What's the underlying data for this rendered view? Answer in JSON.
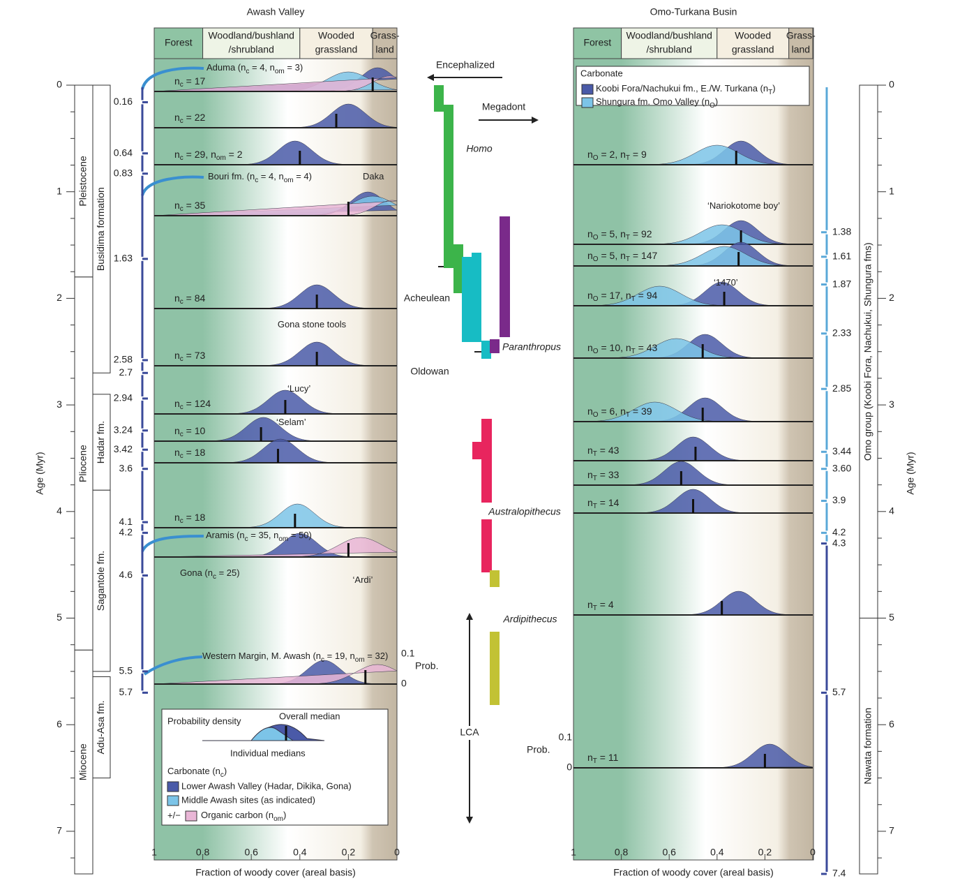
{
  "figure": {
    "titles": {
      "left": "Awash Valley",
      "right": "Omo-Turkana Busin"
    },
    "habitats": {
      "edges": [
        1,
        0.8,
        0.4,
        0.1,
        0
      ],
      "labels": [
        [
          "Forest"
        ],
        [
          "Woodland/bushland",
          "/shrubland"
        ],
        [
          "Wooded",
          "grassland"
        ],
        [
          "Grass-",
          "land"
        ]
      ]
    },
    "age_axis": {
      "label": "Age (Myr)",
      "ticks": [
        0,
        1,
        2,
        3,
        4,
        5,
        6,
        7
      ]
    },
    "x_axis": {
      "label": "Fraction of woody cover (areal basis)",
      "ticks": [
        1,
        0.8,
        0.6,
        0.4,
        0.2,
        0
      ],
      "lim": [
        1,
        0
      ]
    },
    "prob_axis": {
      "label": "Prob.",
      "ticks": [
        0.1,
        0
      ]
    },
    "left": {
      "boundaries": [
        0.16,
        0.64,
        0.83,
        1.63,
        2.58,
        2.7,
        2.94,
        3.24,
        3.42,
        3.6,
        4.1,
        4.2,
        4.6,
        5.5,
        5.7
      ],
      "epochs": [
        {
          "name": "Pleistocene",
          "range": [
            0,
            1.8
          ]
        },
        {
          "name": "Pliocene",
          "range": [
            1.8,
            5.3
          ]
        },
        {
          "name": "Miocene",
          "range": [
            5.3,
            7.4
          ]
        }
      ],
      "formations": [
        {
          "name": "Busidima formation",
          "range": [
            0,
            2.7
          ]
        },
        {
          "name": "Hadar fm.",
          "range": [
            2.9,
            3.8
          ]
        },
        {
          "name": "Sagantole fm.",
          "range": [
            3.8,
            5.5
          ]
        },
        {
          "name": "Adu-Asa fm.",
          "range": [
            5.55,
            6.5
          ]
        }
      ],
      "rows": [
        {
          "label": [
            "n",
            {
              "sub": "c"
            },
            " = 17"
          ],
          "median": 0.1,
          "components": [
            {
              "color": "#4a5aa8",
              "peak": 0.08
            },
            {
              "color": "#7cc4e8",
              "peak": 0.2
            },
            {
              "color": "#e9b6d6",
              "peak": 0.03
            }
          ]
        },
        {
          "label": [
            "n",
            {
              "sub": "c"
            },
            " = 22"
          ],
          "median": 0.25,
          "components": [
            {
              "color": "#4a5aa8",
              "peak": 0.2
            }
          ]
        },
        {
          "label": [
            "n",
            {
              "sub": "c"
            },
            " = 29, n",
            {
              "sub": "om"
            },
            " = 2"
          ],
          "median": 0.4,
          "components": [
            {
              "color": "#4a5aa8",
              "peak": 0.42
            }
          ]
        },
        {
          "label": [
            "n",
            {
              "sub": "c"
            },
            " = 35"
          ],
          "median": 0.2,
          "components": [
            {
              "color": "#4a5aa8",
              "peak": 0.12
            },
            {
              "color": "#7cc4e8",
              "peak": 0.1
            },
            {
              "color": "#e9b6d6",
              "peak": 0.02
            }
          ]
        },
        {
          "label": [
            "n",
            {
              "sub": "c"
            },
            " = 84"
          ],
          "median": 0.33,
          "components": [
            {
              "color": "#4a5aa8",
              "peak": 0.33
            }
          ]
        },
        {
          "label": [
            "n",
            {
              "sub": "c"
            },
            " = 73"
          ],
          "median": 0.33,
          "components": [
            {
              "color": "#4a5aa8",
              "peak": 0.33
            }
          ]
        },
        {
          "label": [
            "n",
            {
              "sub": "c"
            },
            " = 124"
          ],
          "median": 0.46,
          "components": [
            {
              "color": "#4a5aa8",
              "peak": 0.46
            }
          ]
        },
        {
          "label": [
            "n",
            {
              "sub": "c"
            },
            " = 10"
          ],
          "median": 0.56,
          "components": [
            {
              "color": "#4a5aa8",
              "peak": 0.55
            }
          ]
        },
        {
          "label": [
            "n",
            {
              "sub": "c"
            },
            " = 18"
          ],
          "median": 0.49,
          "components": [
            {
              "color": "#4a5aa8",
              "peak": 0.48
            }
          ]
        },
        {
          "label": [
            "n",
            {
              "sub": "c"
            },
            " = 18"
          ],
          "median": 0.42,
          "components": [
            {
              "color": "#7cc4e8",
              "peak": 0.41
            }
          ]
        },
        {
          "label": [],
          "median": 0.2,
          "components": [
            {
              "color": "#4a5aa8",
              "peak": 0.4
            },
            {
              "color": "#e9b6d6",
              "peak": 0.15
            }
          ]
        },
        {
          "label": [],
          "median": 0.13,
          "components": [
            {
              "color": "#4a5aa8",
              "peak": 0.3
            },
            {
              "color": "#e9b6d6",
              "peak": 0.08
            }
          ]
        }
      ],
      "annotations": [
        [
          "Aduma (n",
          {
            "sub": "c"
          },
          " = 4, n",
          {
            "sub": "om"
          },
          " = 3)"
        ],
        [
          "Bouri fm. (n",
          {
            "sub": "c"
          },
          " = 4, n",
          {
            "sub": "om"
          },
          " = 4)"
        ],
        [
          "Daka"
        ],
        [
          "Gona stone tools"
        ],
        [
          "‘Lucy’"
        ],
        [
          "‘Selam’"
        ],
        [
          "Aramis (n",
          {
            "sub": "c"
          },
          " = 35, n",
          {
            "sub": "om"
          },
          " = 50)"
        ],
        [
          "Gona (n",
          {
            "sub": "c"
          },
          " = 25)"
        ],
        [
          "‘Ardi’"
        ],
        [
          "Western Margin, M. Awash (n",
          {
            "sub": "c"
          },
          " = 19, n",
          {
            "sub": "om"
          },
          " = 32)"
        ]
      ],
      "legend": {
        "density": "Probability density",
        "overall": "Overall median",
        "individual": "Individual medians",
        "title": [
          "Carbonate (n",
          {
            "sub": "c"
          },
          ")"
        ],
        "items": [
          {
            "name": "Lower Awash Valley (Hadar, Dikika, Gona)",
            "color": "#4a5aa8"
          },
          {
            "name": "Middle Awash sites (as indicated)",
            "color": "#7cc4e8"
          }
        ],
        "pm": "+/−",
        "organic": [
          "Organic carbon (n",
          {
            "sub": "om"
          },
          ")"
        ],
        "organic_color": "#e9b6d6"
      }
    },
    "right": {
      "boundaries": [
        1.38,
        1.61,
        1.87,
        2.33,
        2.85,
        3.44,
        {
          "value": 3.6,
          "label": "3.60"
        },
        3.9,
        4.2,
        4.3,
        5.7,
        7.4
      ],
      "formations": [
        {
          "name": "Omo group (Koobi Fora, Nachukui, Shungura fms)",
          "range": [
            0,
            5
          ]
        },
        {
          "name": "Nawata formation",
          "range": [
            5,
            7.4
          ]
        }
      ],
      "rows": [
        {
          "label": [
            "n",
            {
              "sub": "O"
            },
            " = 2, n",
            {
              "sub": "T"
            },
            " = 9"
          ],
          "median": 0.32,
          "components": [
            {
              "color": "#4a5aa8",
              "peak": 0.3
            },
            {
              "color": "#7cc4e8",
              "peak": 0.4
            }
          ]
        },
        {
          "label": [
            "n",
            {
              "sub": "O"
            },
            " = 5, n",
            {
              "sub": "T"
            },
            " = 92"
          ],
          "median": 0.3,
          "components": [
            {
              "color": "#4a5aa8",
              "peak": 0.3
            },
            {
              "color": "#7cc4e8",
              "peak": 0.38
            }
          ]
        },
        {
          "label": [
            "n",
            {
              "sub": "O"
            },
            " = 5, n",
            {
              "sub": "T"
            },
            " = 147"
          ],
          "median": 0.31,
          "components": [
            {
              "color": "#4a5aa8",
              "peak": 0.3
            },
            {
              "color": "#7cc4e8",
              "peak": 0.37
            }
          ]
        },
        {
          "label": [
            "n",
            {
              "sub": "O"
            },
            " = 17, n",
            {
              "sub": "T"
            },
            " = 94"
          ],
          "median": 0.37,
          "components": [
            {
              "color": "#4a5aa8",
              "peak": 0.38
            },
            {
              "color": "#7cc4e8",
              "peak": 0.64
            }
          ]
        },
        {
          "label": [
            "n",
            {
              "sub": "O"
            },
            " = 10, n",
            {
              "sub": "T"
            },
            " = 43"
          ],
          "median": 0.46,
          "components": [
            {
              "color": "#4a5aa8",
              "peak": 0.45
            },
            {
              "color": "#7cc4e8",
              "peak": 0.57
            }
          ]
        },
        {
          "label": [
            "n",
            {
              "sub": "O"
            },
            " = 6, n",
            {
              "sub": "T"
            },
            " = 39"
          ],
          "median": 0.46,
          "components": [
            {
              "color": "#4a5aa8",
              "peak": 0.45
            },
            {
              "color": "#7cc4e8",
              "peak": 0.66
            }
          ]
        },
        {
          "label": [
            "n",
            {
              "sub": "T"
            },
            " = 43"
          ],
          "median": 0.49,
          "components": [
            {
              "color": "#4a5aa8",
              "peak": 0.5
            }
          ]
        },
        {
          "label": [
            "n",
            {
              "sub": "T"
            },
            " = 33"
          ],
          "median": 0.55,
          "components": [
            {
              "color": "#4a5aa8",
              "peak": 0.55
            }
          ]
        },
        {
          "label": [
            "n",
            {
              "sub": "T"
            },
            " = 14"
          ],
          "median": 0.5,
          "components": [
            {
              "color": "#4a5aa8",
              "peak": 0.5
            }
          ]
        },
        {
          "label": [
            "n",
            {
              "sub": "T"
            },
            " = 4"
          ],
          "median": 0.38,
          "components": [
            {
              "color": "#4a5aa8",
              "peak": 0.31
            }
          ]
        },
        {
          "label": [
            "n",
            {
              "sub": "T"
            },
            " = 11"
          ],
          "median": 0.2,
          "components": [
            {
              "color": "#4a5aa8",
              "peak": 0.18
            }
          ]
        }
      ],
      "annotations": [
        [
          "‘Nariokotome boy’"
        ],
        [
          "‘1470’"
        ]
      ],
      "legend": {
        "title": "Carbonate",
        "items": [
          {
            "name": [
              "Koobi Fora/Nachukui fm., E./W. Turkana (n",
              {
                "sub": "T"
              },
              ")"
            ],
            "color": "#4a5aa8"
          },
          {
            "name": [
              "Shungura fm. Omo Valley (n",
              {
                "sub": "O"
              },
              ")"
            ],
            "color": "#7cc4e8"
          }
        ]
      }
    },
    "center": {
      "encephalized": "Encephalized",
      "megadont": "Megadont",
      "taxa": [
        "Homo",
        "Paranthropus",
        "Australopithecus",
        "Ardipithecus"
      ],
      "tools": [
        "Acheulean",
        "Oldowan"
      ],
      "lca": "LCA"
    }
  }
}
